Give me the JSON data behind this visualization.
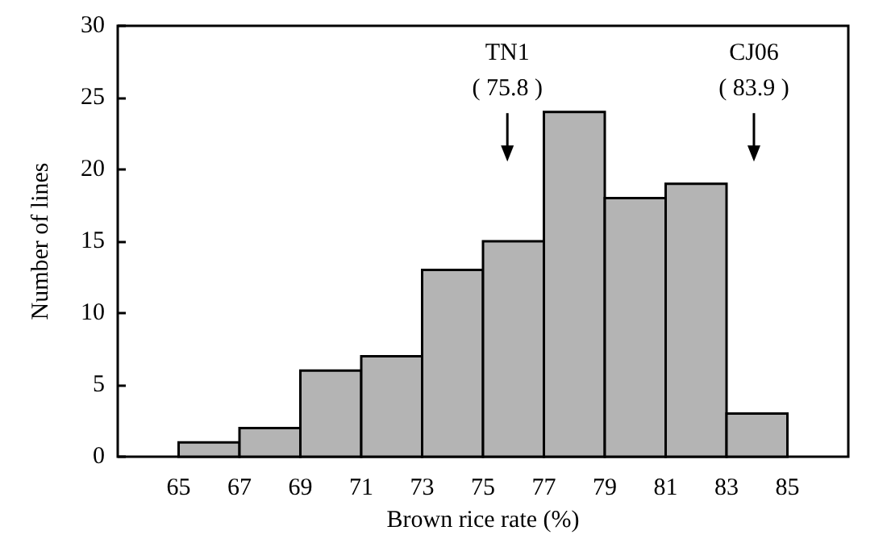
{
  "chart_data": {
    "type": "histogram",
    "xlabel": "Brown rice rate (%)",
    "ylabel": "Number of lines",
    "bins": [
      65,
      67,
      69,
      71,
      73,
      75,
      77,
      79,
      81,
      83,
      85
    ],
    "values": [
      1,
      2,
      6,
      7,
      13,
      15,
      24,
      18,
      19,
      3
    ],
    "color": "#b4b4b4",
    "xlim": [
      63,
      87
    ],
    "xticks": [
      65,
      67,
      69,
      71,
      73,
      75,
      77,
      79,
      81,
      83,
      85
    ],
    "ylim": [
      0,
      30
    ],
    "yticks": [
      0,
      5,
      10,
      15,
      20,
      25,
      30
    ],
    "grid": false,
    "ref_lines": [
      {
        "axis": "x",
        "value": 75.8,
        "label": "TN1\n( 75.8 )"
      },
      {
        "axis": "x",
        "value": 83.9,
        "label": "CJ06\n( 83.9 )"
      }
    ]
  }
}
